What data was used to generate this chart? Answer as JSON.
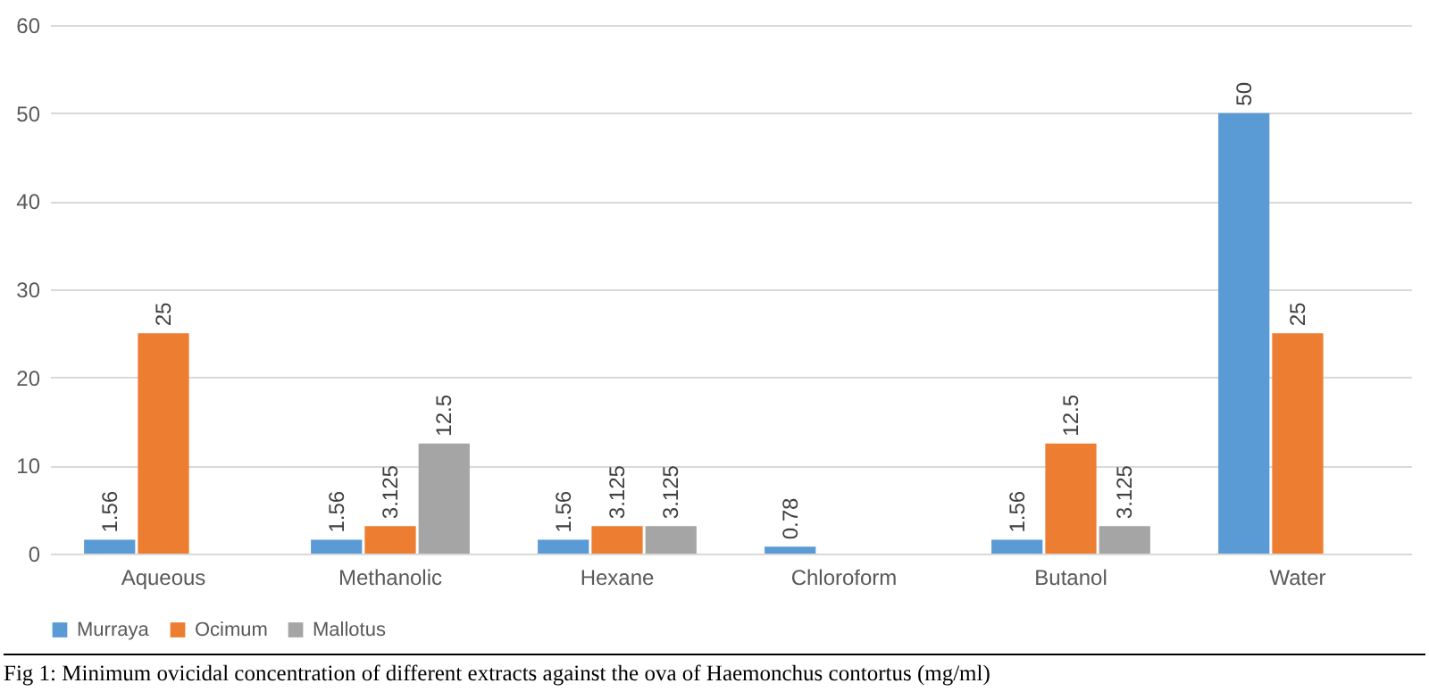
{
  "chart_data": {
    "type": "bar",
    "categories": [
      "Aqueous",
      "Methanolic",
      "Hexane",
      "Chloroform",
      "Butanol",
      "Water"
    ],
    "series": [
      {
        "name": "Murraya",
        "color": "#5b9bd5",
        "values": [
          1.56,
          1.56,
          1.56,
          0.78,
          1.56,
          50
        ]
      },
      {
        "name": "Ocimum",
        "color": "#ed7d31",
        "values": [
          25,
          3.125,
          3.125,
          null,
          12.5,
          25
        ]
      },
      {
        "name": "Mallotus",
        "color": "#a5a5a5",
        "values": [
          null,
          12.5,
          3.125,
          null,
          3.125,
          null
        ]
      }
    ],
    "ylim": [
      0,
      60
    ],
    "yticks": [
      0,
      10,
      20,
      30,
      40,
      50,
      60
    ],
    "grid": "y",
    "legend": "bottom",
    "data_labels": true,
    "annotations": [
      "Fig 1: Minimum ovicidal concentration of different extracts against the ova of Haemonchus contortus (mg/ml)"
    ]
  }
}
